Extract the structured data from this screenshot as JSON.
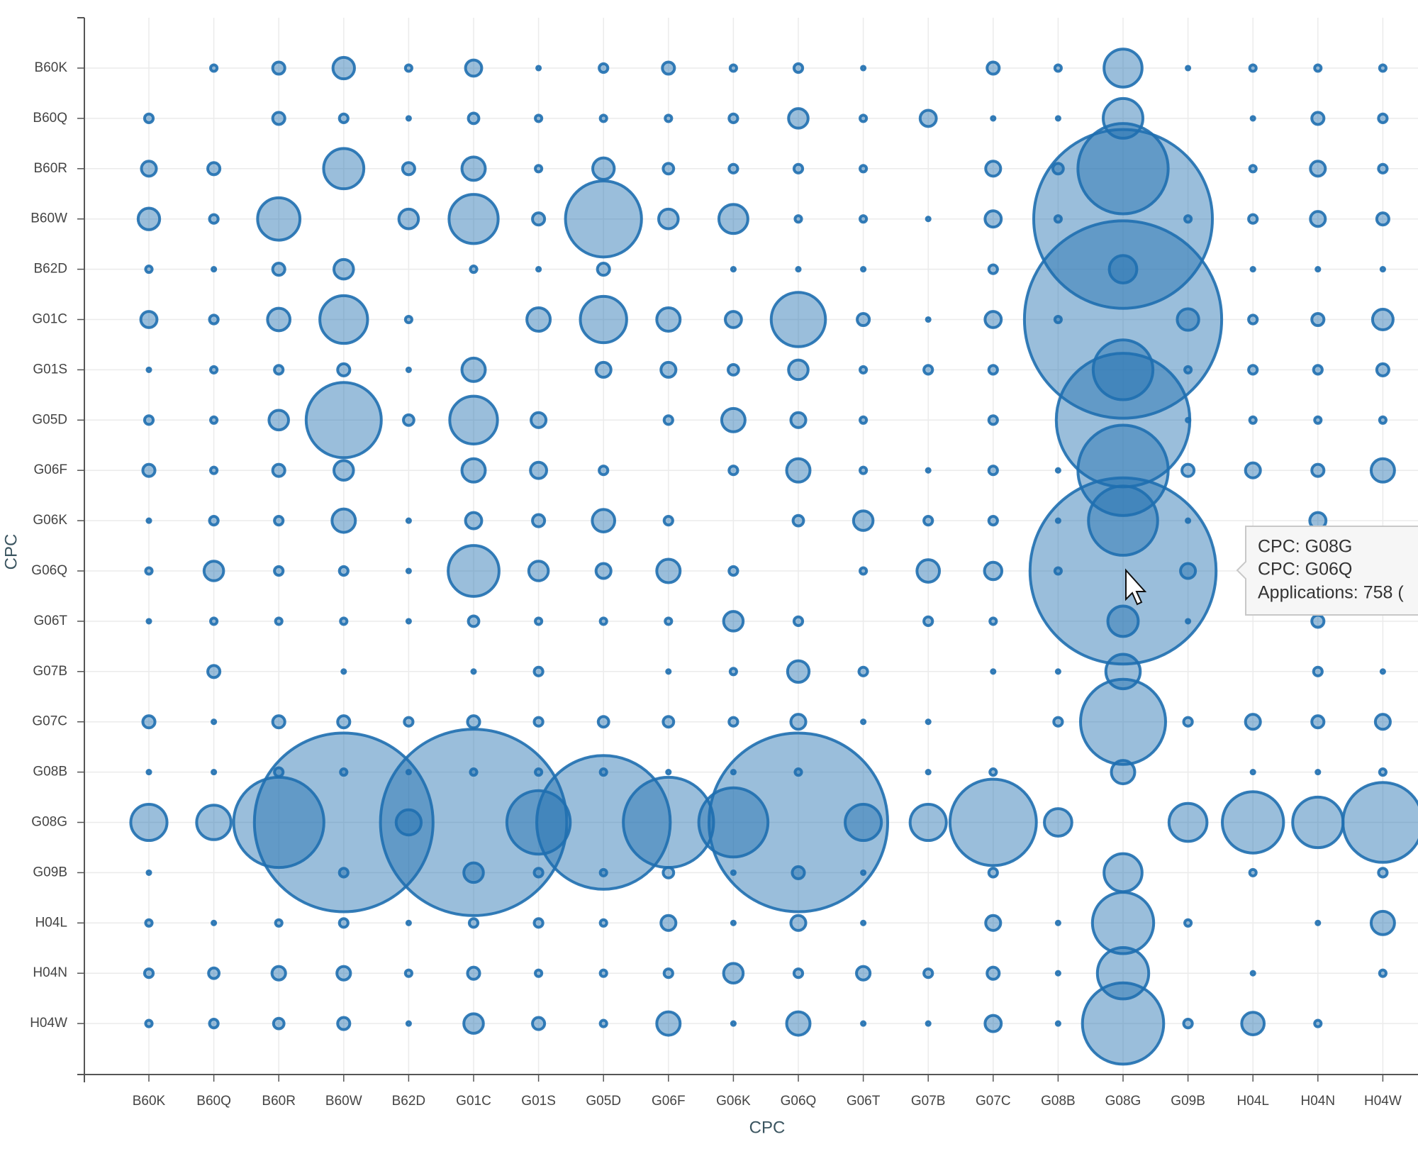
{
  "chart_data": {
    "type": "bubble",
    "x_label": "CPC",
    "y_label": "CPC",
    "color": "#1f6fb0",
    "grid": true,
    "categories": [
      "B60K",
      "B60Q",
      "B60R",
      "B60W",
      "B62D",
      "G01C",
      "G01S",
      "G05D",
      "G06F",
      "G06K",
      "G06Q",
      "G06T",
      "G07B",
      "G07C",
      "G08B",
      "G08G",
      "G09B",
      "H04L",
      "H04N",
      "H04W"
    ],
    "values": [
      [
        null,
        2,
        5,
        13,
        2,
        8,
        1,
        3,
        5,
        2,
        3,
        1,
        null,
        5,
        2,
        36,
        1,
        2,
        2,
        2
      ],
      [
        3,
        null,
        5,
        3,
        1,
        4,
        2,
        2,
        2,
        3,
        11,
        2,
        8,
        1,
        1,
        39,
        null,
        1,
        5,
        3
      ],
      [
        7,
        5,
        null,
        40,
        5,
        15,
        2,
        13,
        4,
        3,
        3,
        2,
        null,
        7,
        4,
        185,
        null,
        2,
        7,
        3
      ],
      [
        13,
        3,
        44,
        null,
        11,
        58,
        5,
        133,
        11,
        22,
        2,
        2,
        1,
        8,
        2,
        700,
        2,
        3,
        7,
        5
      ],
      [
        2,
        1,
        5,
        11,
        null,
        2,
        1,
        5,
        null,
        1,
        1,
        1,
        null,
        3,
        null,
        20,
        null,
        1,
        1,
        1
      ],
      [
        8,
        3,
        14,
        55,
        2,
        null,
        15,
        52,
        15,
        8,
        70,
        5,
        1,
        8,
        2,
        850,
        13,
        3,
        5,
        12
      ],
      [
        1,
        2,
        3,
        5,
        1,
        15,
        null,
        7,
        7,
        4,
        11,
        2,
        3,
        3,
        null,
        84,
        2,
        3,
        3,
        5
      ],
      [
        3,
        2,
        11,
        130,
        4,
        55,
        7,
        null,
        3,
        15,
        7,
        2,
        null,
        3,
        null,
        396,
        1,
        2,
        2,
        2
      ],
      [
        5,
        2,
        5,
        11,
        null,
        15,
        8,
        3,
        null,
        3,
        15,
        2,
        1,
        3,
        1,
        185,
        5,
        7,
        5,
        15
      ],
      [
        1,
        3,
        3,
        15,
        1,
        8,
        5,
        14,
        3,
        null,
        4,
        11,
        3,
        3,
        1,
        111,
        1,
        null,
        8,
        null
      ],
      [
        2,
        11,
        3,
        3,
        1,
        62,
        11,
        7,
        15,
        3,
        null,
        2,
        14,
        9,
        2,
        758,
        7,
        null,
        null,
        null
      ],
      [
        1,
        2,
        2,
        2,
        1,
        4,
        2,
        2,
        2,
        11,
        3,
        null,
        3,
        2,
        null,
        24,
        1,
        null,
        5,
        null
      ],
      [
        null,
        5,
        null,
        1,
        null,
        1,
        3,
        null,
        1,
        2,
        13,
        3,
        null,
        1,
        1,
        30,
        null,
        null,
        3,
        1
      ],
      [
        5,
        1,
        5,
        5,
        3,
        5,
        3,
        4,
        4,
        3,
        7,
        1,
        1,
        null,
        3,
        165,
        3,
        7,
        5,
        7
      ],
      [
        1,
        1,
        3,
        2,
        1,
        2,
        2,
        2,
        1,
        1,
        2,
        null,
        1,
        2,
        null,
        15,
        null,
        1,
        1,
        2
      ],
      [
        33,
        30,
        185,
        700,
        17,
        760,
        94,
        396,
        185,
        111,
        700,
        33,
        33,
        170,
        20,
        null,
        36,
        88,
        61,
        146
      ],
      [
        1,
        null,
        null,
        3,
        null,
        11,
        3,
        2,
        4,
        1,
        5,
        1,
        null,
        3,
        null,
        36,
        null,
        2,
        null,
        3
      ],
      [
        2,
        1,
        2,
        3,
        1,
        3,
        3,
        2,
        7,
        1,
        7,
        1,
        null,
        7,
        1,
        88,
        2,
        null,
        1,
        15
      ],
      [
        3,
        4,
        6,
        6,
        2,
        5,
        2,
        2,
        3,
        11,
        3,
        6,
        3,
        5,
        1,
        63,
        null,
        1,
        null,
        2
      ],
      [
        2,
        3,
        4,
        5,
        1,
        11,
        5,
        2,
        15,
        1,
        15,
        1,
        1,
        8,
        1,
        151,
        3,
        14,
        2,
        null
      ]
    ],
    "tooltip": {
      "lines": [
        "CPC: G08G",
        "CPC: G06Q",
        "Applications: 758 ("
      ]
    }
  }
}
